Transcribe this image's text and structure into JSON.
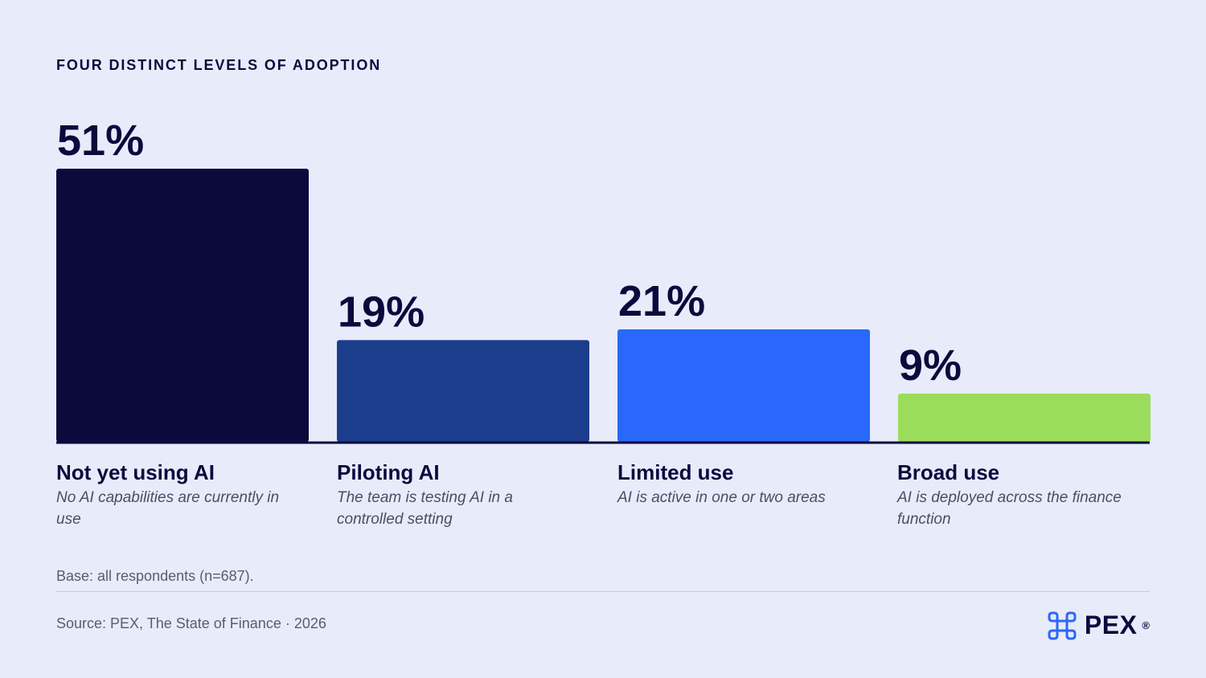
{
  "header": {
    "title": "FOUR DISTINCT LEVELS OF ADOPTION"
  },
  "chart_data": {
    "type": "bar",
    "title": "FOUR DISTINCT LEVELS OF ADOPTION",
    "categories": [
      "Not yet using AI",
      "Piloting AI",
      "Limited use",
      "Broad use"
    ],
    "descriptions": [
      "No AI capabilities are currently in use",
      "The team is testing AI in a controlled setting",
      "AI is active in one or two areas",
      "AI is deployed across the finance function"
    ],
    "values": [
      51,
      19,
      21,
      9
    ],
    "value_labels": [
      "51%",
      "19%",
      "21%",
      "9%"
    ],
    "colors": [
      "#0b0a3d",
      "#1c3c8c",
      "#2a67fb",
      "#9bdc5c"
    ],
    "ylim": [
      0,
      51
    ],
    "grid": false,
    "legend": "none"
  },
  "footer": {
    "base": "Base: all respondents (n=687).",
    "source": "Source: PEX, The State of Finance · 2026",
    "logo_text": "PEX",
    "logo_reg": "®",
    "logo_icon": "command-key-icon",
    "logo_color": "#2a67fb"
  }
}
